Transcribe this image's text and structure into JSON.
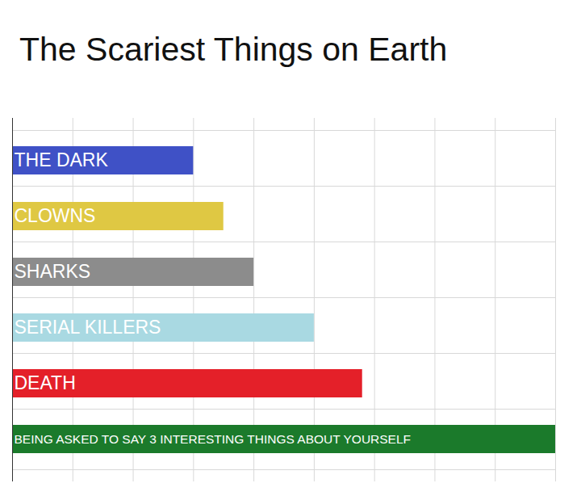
{
  "chart_data": {
    "type": "bar",
    "title": "The Scariest Things on Earth",
    "orientation": "horizontal",
    "categories": [
      "THE DARK",
      "CLOWNS",
      "SHARKS",
      "SERIAL KILLERS",
      "DEATH",
      "BEING ASKED TO SAY 3 INTERESTING THINGS ABOUT YOURSELF"
    ],
    "values": [
      3,
      3.5,
      4,
      5,
      5.8,
      9
    ],
    "colors": [
      "#3f51c6",
      "#dfc843",
      "#8c8c8c",
      "#a9d9e2",
      "#e42029",
      "#1b7a2b"
    ],
    "xlim": [
      0,
      9
    ],
    "xticks": [
      0,
      1,
      2,
      3,
      4,
      5,
      6,
      7,
      8,
      9
    ],
    "grid": true,
    "tick_labels": false
  }
}
